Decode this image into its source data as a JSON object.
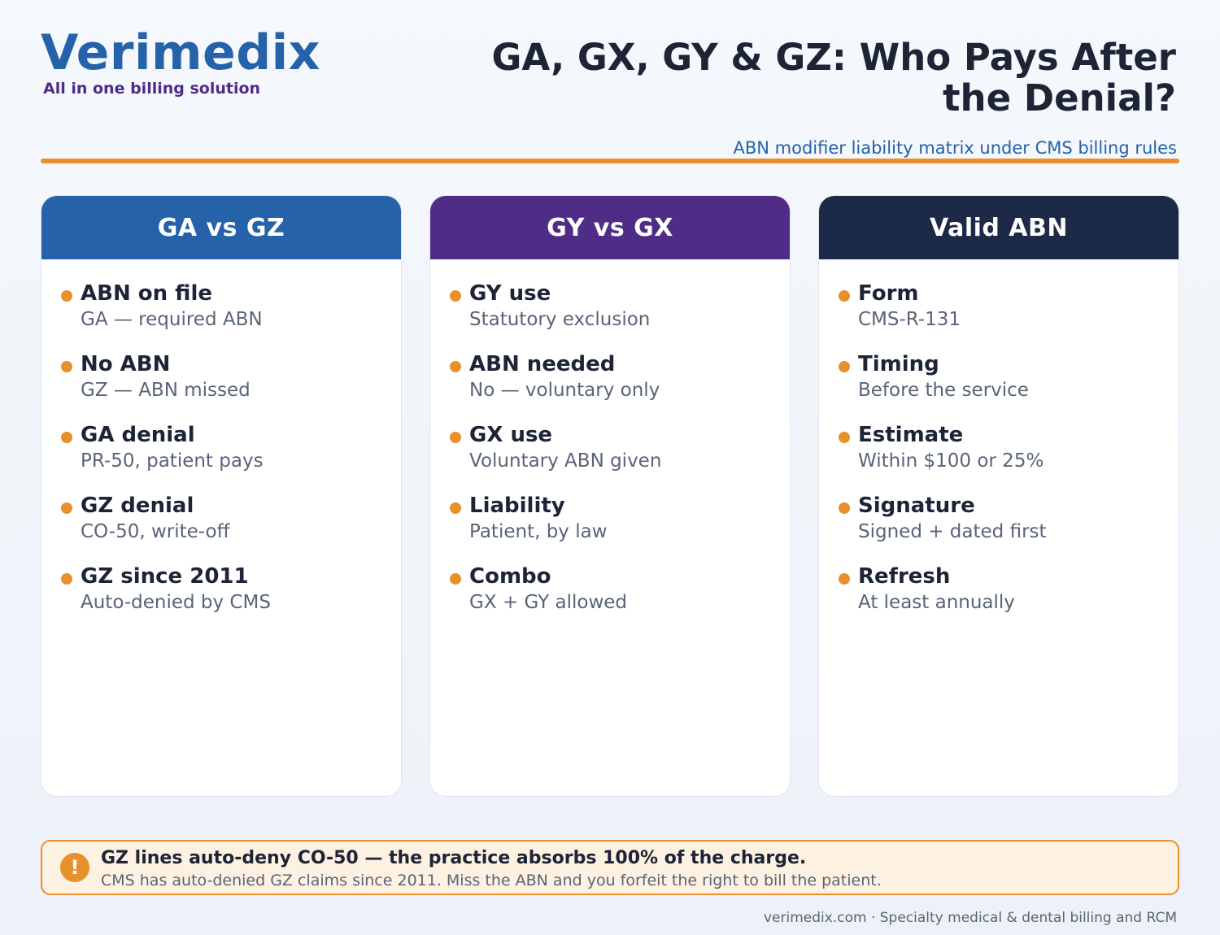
{
  "brand": {
    "name": "Verimedix",
    "tagline": "All in one billing solution"
  },
  "header": {
    "title": "GA, GX, GY & GZ: Who Pays After the Denial?",
    "subtitle": "ABN modifier liability matrix under CMS billing rules"
  },
  "colors": {
    "accent": "#e8902b",
    "blue": "#2562aa",
    "purple": "#4f2d87",
    "navy": "#1c2a48"
  },
  "cards": [
    {
      "title": "GA vs GZ",
      "items": [
        {
          "title": "ABN on file",
          "desc": "GA — required ABN"
        },
        {
          "title": "No ABN",
          "desc": "GZ — ABN missed"
        },
        {
          "title": "GA denial",
          "desc": "PR-50, patient pays"
        },
        {
          "title": "GZ denial",
          "desc": "CO-50, write-off"
        },
        {
          "title": "GZ since 2011",
          "desc": "Auto-denied by CMS"
        }
      ]
    },
    {
      "title": "GY vs GX",
      "items": [
        {
          "title": "GY use",
          "desc": "Statutory exclusion"
        },
        {
          "title": "ABN needed",
          "desc": "No — voluntary only"
        },
        {
          "title": "GX use",
          "desc": "Voluntary ABN given"
        },
        {
          "title": "Liability",
          "desc": "Patient, by law"
        },
        {
          "title": "Combo",
          "desc": "GX + GY allowed"
        }
      ]
    },
    {
      "title": "Valid ABN",
      "items": [
        {
          "title": "Form",
          "desc": "CMS-R-131"
        },
        {
          "title": "Timing",
          "desc": "Before the service"
        },
        {
          "title": "Estimate",
          "desc": "Within $100 or 25%"
        },
        {
          "title": "Signature",
          "desc": "Signed + dated first"
        },
        {
          "title": "Refresh",
          "desc": "At least annually"
        }
      ]
    }
  ],
  "callout": {
    "icon": "!",
    "title": "GZ lines auto-deny CO-50 — the practice absorbs 100% of the charge.",
    "text": "CMS has auto-denied GZ claims since 2011. Miss the ABN and you forfeit the right to bill the patient."
  },
  "footer": {
    "text": "verimedix.com · Specialty medical & dental billing and RCM"
  }
}
